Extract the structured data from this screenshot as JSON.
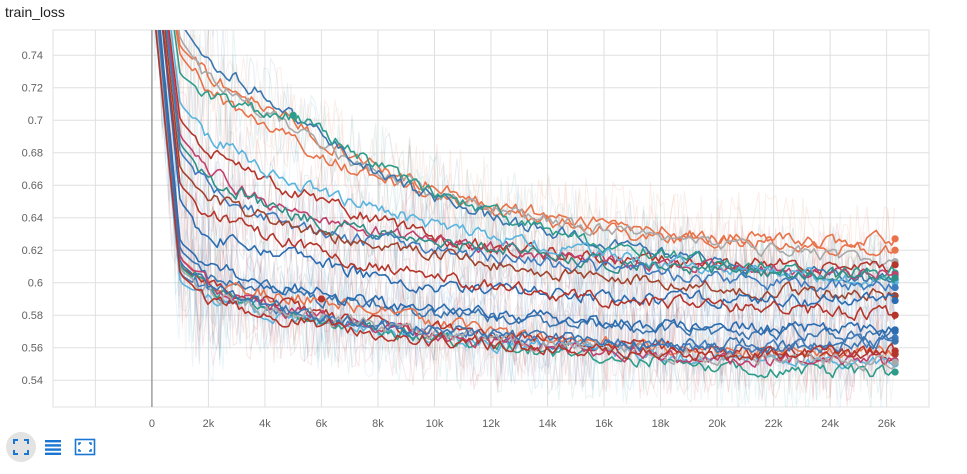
{
  "card": {
    "title": "train_loss"
  },
  "toolbar": {
    "buttons": [
      {
        "icon": "fit-domain-icon",
        "active": true
      },
      {
        "icon": "data-table-icon",
        "active": false
      },
      {
        "icon": "expand-chart-icon",
        "active": false
      }
    ],
    "icon_color": "#1976d2"
  },
  "chart_data": {
    "type": "line",
    "title": "train_loss",
    "xlabel": "",
    "ylabel": "",
    "x_ticks": [
      0,
      2000,
      4000,
      6000,
      8000,
      10000,
      12000,
      14000,
      16000,
      18000,
      20000,
      22000,
      24000,
      26000
    ],
    "x_tick_labels": [
      "0",
      "2k",
      "4k",
      "6k",
      "8k",
      "10k",
      "12k",
      "14k",
      "16k",
      "18k",
      "20k",
      "22k",
      "24k",
      "26k"
    ],
    "y_ticks": [
      0.54,
      0.56,
      0.58,
      0.6,
      0.62,
      0.64,
      0.66,
      0.68,
      0.7,
      0.72,
      0.74
    ],
    "y_tick_labels": [
      "0.54",
      "0.56",
      "0.58",
      "0.6",
      "0.62",
      "0.64",
      "0.66",
      "0.68",
      "0.7",
      "0.72",
      "0.74"
    ],
    "xlim": [
      -3500,
      27500
    ],
    "ylim": [
      0.5235,
      0.7555
    ],
    "grid": true,
    "legend": "none",
    "smoothed_with_raw_shadow": true,
    "series": [
      {
        "color": "#e8734a",
        "x": [
          0,
          1000,
          2000,
          4000,
          6000,
          8000,
          10000,
          12000,
          14000,
          16000,
          18000,
          20000,
          22000,
          24000,
          26300
        ],
        "values": [
          0.86,
          0.745,
          0.728,
          0.708,
          0.688,
          0.672,
          0.658,
          0.648,
          0.642,
          0.636,
          0.632,
          0.628,
          0.627,
          0.625,
          0.627
        ]
      },
      {
        "color": "#e8734a",
        "x": [
          0,
          1000,
          2000,
          4000,
          6000,
          8000,
          10000,
          12000,
          14000,
          16000,
          18000,
          20000,
          22000,
          24000,
          26300
        ],
        "values": [
          0.85,
          0.74,
          0.718,
          0.696,
          0.678,
          0.664,
          0.652,
          0.644,
          0.638,
          0.632,
          0.628,
          0.626,
          0.624,
          0.622,
          0.62
        ]
      },
      {
        "color": "#a9a9a9",
        "x": [
          0,
          1000,
          2000,
          4000,
          6000,
          8000,
          10000,
          12000,
          14000,
          16000,
          18000,
          20000,
          22000,
          24000,
          26300
        ],
        "values": [
          0.87,
          0.75,
          0.725,
          0.705,
          0.682,
          0.668,
          0.655,
          0.645,
          0.638,
          0.632,
          0.628,
          0.624,
          0.62,
          0.616,
          0.613
        ]
      },
      {
        "color": "#b5352b",
        "x": [
          0,
          1000,
          2000,
          4000,
          6000,
          8000,
          10000,
          12000,
          14000,
          16000,
          18000,
          20000,
          22000,
          24000,
          26300
        ],
        "values": [
          0.84,
          0.7,
          0.68,
          0.662,
          0.65,
          0.638,
          0.628,
          0.622,
          0.618,
          0.615,
          0.613,
          0.612,
          0.611,
          0.61,
          0.611
        ]
      },
      {
        "color": "#3b75af",
        "x": [
          0,
          1000,
          2000,
          4000,
          6000,
          8000,
          10000,
          12000,
          14000,
          16000,
          18000,
          20000,
          22000,
          24000,
          26300
        ],
        "values": [
          0.88,
          0.76,
          0.735,
          0.715,
          0.69,
          0.668,
          0.652,
          0.64,
          0.632,
          0.624,
          0.618,
          0.612,
          0.608,
          0.605,
          0.602
        ]
      },
      {
        "color": "#2e9c8b",
        "x": [
          0,
          1000,
          2000,
          4000,
          5000,
          6000,
          8000,
          10000,
          12000,
          14000,
          16000,
          18000,
          20000,
          22000,
          24000,
          26300
        ],
        "values": [
          0.86,
          0.728,
          0.715,
          0.705,
          0.703,
          0.692,
          0.672,
          0.656,
          0.642,
          0.632,
          0.624,
          0.618,
          0.612,
          0.608,
          0.605,
          0.606
        ]
      },
      {
        "color": "#c2406c",
        "x": [
          0,
          1000,
          2000,
          4000,
          6000,
          8000,
          10000,
          12000,
          14000,
          16000,
          18000,
          20000,
          22000,
          24000,
          26300
        ],
        "values": [
          0.84,
          0.69,
          0.67,
          0.648,
          0.638,
          0.632,
          0.626,
          0.622,
          0.618,
          0.615,
          0.612,
          0.61,
          0.608,
          0.606,
          0.605
        ]
      },
      {
        "color": "#59b4de",
        "x": [
          0,
          1000,
          2000,
          4000,
          6000,
          8000,
          10000,
          12000,
          14000,
          16000,
          18000,
          20000,
          22000,
          24000,
          26300
        ],
        "values": [
          0.85,
          0.71,
          0.69,
          0.67,
          0.655,
          0.645,
          0.636,
          0.628,
          0.622,
          0.617,
          0.612,
          0.609,
          0.606,
          0.603,
          0.6
        ]
      },
      {
        "color": "#2f8f87",
        "x": [
          0,
          1000,
          2000,
          4000,
          6000,
          8000,
          10000,
          12000,
          14000,
          16000,
          18000,
          20000,
          22000,
          24000,
          26300
        ],
        "values": [
          0.83,
          0.685,
          0.665,
          0.648,
          0.637,
          0.63,
          0.624,
          0.62,
          0.617,
          0.613,
          0.61,
          0.608,
          0.606,
          0.604,
          0.603
        ]
      },
      {
        "color": "#3f7cbf",
        "x": [
          0,
          1000,
          2000,
          4000,
          6000,
          8000,
          10000,
          12000,
          14000,
          16000,
          18000,
          20000,
          22000,
          24000,
          26300
        ],
        "values": [
          0.84,
          0.68,
          0.66,
          0.64,
          0.63,
          0.625,
          0.62,
          0.616,
          0.612,
          0.608,
          0.605,
          0.603,
          0.6,
          0.598,
          0.597
        ]
      },
      {
        "color": "#a0442e",
        "x": [
          0,
          1000,
          2000,
          4000,
          6000,
          8000,
          10000,
          12000,
          14000,
          16000,
          18000,
          20000,
          22000,
          24000,
          26300
        ],
        "values": [
          0.83,
          0.67,
          0.652,
          0.64,
          0.63,
          0.624,
          0.618,
          0.612,
          0.606,
          0.602,
          0.599,
          0.597,
          0.595,
          0.593,
          0.592
        ]
      },
      {
        "color": "#2b6cb0",
        "x": [
          0,
          1000,
          2000,
          4000,
          6000,
          8000,
          10000,
          12000,
          14000,
          16000,
          18000,
          20000,
          22000,
          24000,
          26300
        ],
        "values": [
          0.82,
          0.65,
          0.628,
          0.62,
          0.612,
          0.603,
          0.598,
          0.596,
          0.594,
          0.592,
          0.59,
          0.59,
          0.589,
          0.589,
          0.589
        ]
      },
      {
        "color": "#b5352b",
        "x": [
          0,
          1000,
          2000,
          4000,
          6000,
          8000,
          10000,
          12000,
          14000,
          16000,
          18000,
          20000,
          22000,
          24000,
          26300
        ],
        "values": [
          0.82,
          0.66,
          0.642,
          0.63,
          0.618,
          0.61,
          0.603,
          0.598,
          0.594,
          0.59,
          0.588,
          0.586,
          0.584,
          0.582,
          0.58
        ]
      },
      {
        "color": "#3b75af",
        "x": [
          0,
          1000,
          2000,
          4000,
          6000,
          8000,
          10000,
          12000,
          14000,
          16000,
          18000,
          20000,
          22000,
          24000,
          26300
        ],
        "values": [
          0.8,
          0.62,
          0.604,
          0.596,
          0.589,
          0.585,
          0.582,
          0.579,
          0.576,
          0.574,
          0.572,
          0.57,
          0.569,
          0.568,
          0.57
        ]
      },
      {
        "color": "#e8734a",
        "x": [
          0,
          1000,
          2000,
          4000,
          6000,
          8000,
          10000,
          12000,
          14000,
          16000,
          18000,
          20000,
          22000,
          24000,
          26300
        ],
        "values": [
          0.79,
          0.615,
          0.6,
          0.593,
          0.59,
          0.582,
          0.575,
          0.57,
          0.566,
          0.563,
          0.561,
          0.559,
          0.558,
          0.557,
          0.558
        ]
      },
      {
        "color": "#b5352b",
        "x": [
          0,
          1000,
          2000,
          4000,
          6000,
          8000,
          10000,
          12000,
          14000,
          16000,
          18000,
          20000,
          22000,
          24000,
          26300
        ],
        "values": [
          0.8,
          0.61,
          0.598,
          0.588,
          0.58,
          0.575,
          0.571,
          0.567,
          0.565,
          0.562,
          0.56,
          0.558,
          0.557,
          0.556,
          0.556
        ]
      },
      {
        "color": "#3f7cbf",
        "x": [
          0,
          1000,
          2000,
          4000,
          6000,
          8000,
          10000,
          12000,
          14000,
          16000,
          18000,
          20000,
          22000,
          24000,
          26300
        ],
        "values": [
          0.79,
          0.605,
          0.594,
          0.585,
          0.579,
          0.573,
          0.569,
          0.566,
          0.564,
          0.562,
          0.561,
          0.56,
          0.56,
          0.561,
          0.566
        ]
      },
      {
        "color": "#59b4de",
        "x": [
          0,
          1000,
          2000,
          4000,
          6000,
          8000,
          10000,
          12000,
          14000,
          16000,
          18000,
          20000,
          22000,
          24000,
          26300
        ],
        "values": [
          0.78,
          0.6,
          0.59,
          0.581,
          0.575,
          0.57,
          0.566,
          0.563,
          0.56,
          0.557,
          0.555,
          0.553,
          0.552,
          0.551,
          0.55
        ]
      },
      {
        "color": "#2e9c8b",
        "x": [
          0,
          1000,
          2000,
          4000,
          6000,
          8000,
          10000,
          12000,
          14000,
          16000,
          18000,
          20000,
          22000,
          24000,
          26300
        ],
        "values": [
          0.79,
          0.61,
          0.595,
          0.583,
          0.576,
          0.571,
          0.566,
          0.562,
          0.558,
          0.555,
          0.552,
          0.549,
          0.547,
          0.546,
          0.545
        ]
      },
      {
        "color": "#c2406c",
        "x": [
          0,
          1000,
          2000,
          4000,
          6000,
          8000,
          10000,
          12000,
          14000,
          16000,
          18000,
          20000,
          22000,
          24000,
          26300
        ],
        "values": [
          0.8,
          0.615,
          0.598,
          0.586,
          0.578,
          0.572,
          0.567,
          0.563,
          0.56,
          0.557,
          0.555,
          0.553,
          0.552,
          0.552,
          0.552
        ]
      },
      {
        "color": "#a9a9a9",
        "x": [
          0,
          1000,
          2000,
          4000,
          6000,
          8000,
          10000,
          12000,
          14000,
          16000,
          18000,
          20000,
          22000,
          24000,
          26300
        ],
        "values": [
          0.79,
          0.608,
          0.595,
          0.584,
          0.578,
          0.573,
          0.568,
          0.565,
          0.562,
          0.559,
          0.557,
          0.555,
          0.553,
          0.552,
          0.551
        ]
      },
      {
        "color": "#3b75af",
        "x": [
          0,
          1000,
          2000,
          4000,
          6000,
          8000,
          10000,
          12000,
          14000,
          16000,
          18000,
          20000,
          22000,
          24000,
          26300
        ],
        "values": [
          0.8,
          0.612,
          0.597,
          0.587,
          0.58,
          0.575,
          0.571,
          0.568,
          0.566,
          0.564,
          0.563,
          0.562,
          0.562,
          0.563,
          0.564
        ]
      },
      {
        "color": "#2b6cb0",
        "x": [
          0,
          1000,
          2000,
          4000,
          6000,
          8000,
          10000,
          12000,
          14000,
          16000,
          18000,
          20000,
          22000,
          24000,
          26300
        ],
        "values": [
          0.81,
          0.625,
          0.61,
          0.6,
          0.593,
          0.588,
          0.584,
          0.58,
          0.578,
          0.576,
          0.574,
          0.573,
          0.572,
          0.571,
          0.571
        ]
      },
      {
        "color": "#b5352b",
        "x": [
          0,
          1000,
          2000,
          4000,
          6000,
          8000,
          10000,
          12000,
          14000,
          16000,
          18000,
          20000,
          22000,
          24000,
          26300
        ],
        "values": [
          0.78,
          0.605,
          0.59,
          0.58,
          0.574,
          0.569,
          0.565,
          0.562,
          0.56,
          0.558,
          0.557,
          0.556,
          0.556,
          0.557,
          0.558
        ]
      }
    ]
  }
}
